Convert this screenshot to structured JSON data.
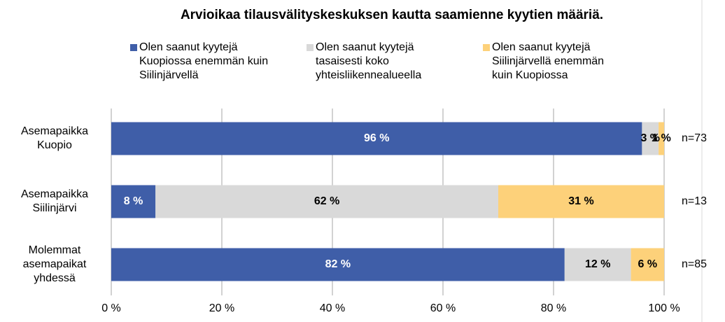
{
  "chart_data": {
    "type": "stacked_barh",
    "title": "Arvioikaa tilausvälityskeskuksen kautta saamienne kyytien määriä.",
    "categories": [
      "Asemapaikka Kuopio",
      "Asemapaikka Siilinjärvi",
      "Molemmat asemapaikat yhdessä"
    ],
    "series": [
      {
        "name": "Olen saanut kyytejä Kuopiossa enemmän kuin Siilinjärvellä",
        "color": "#3f5ea8",
        "values": [
          96,
          8,
          82
        ],
        "value_labels": [
          "96 %",
          "8 %",
          "82 %"
        ]
      },
      {
        "name": "Olen saanut kyytejä tasaisesti koko yhteisliikennealueella",
        "color": "#d9d9d9",
        "values": [
          3,
          62,
          12
        ],
        "value_labels": [
          "3 %",
          "62 %",
          "12 %"
        ]
      },
      {
        "name": "Olen saanut kyytejä Siilinjärvellä enemmän kuin Kuopiossa",
        "color": "#fdd17a",
        "values": [
          1,
          31,
          6
        ],
        "value_labels": [
          "1 %",
          "31 %",
          "6 %"
        ]
      }
    ],
    "annotations": [
      "n=73",
      "n=13",
      "n=85"
    ],
    "xlim": [
      0,
      100
    ],
    "xticks": [
      {
        "value": 0,
        "label": "0 %"
      },
      {
        "value": 20,
        "label": "20 %"
      },
      {
        "value": 40,
        "label": "40 %"
      },
      {
        "value": 60,
        "label": "60 %"
      },
      {
        "value": 80,
        "label": "80 %"
      },
      {
        "value": 100,
        "label": "100 %"
      }
    ],
    "grid": true,
    "legend": "top"
  }
}
